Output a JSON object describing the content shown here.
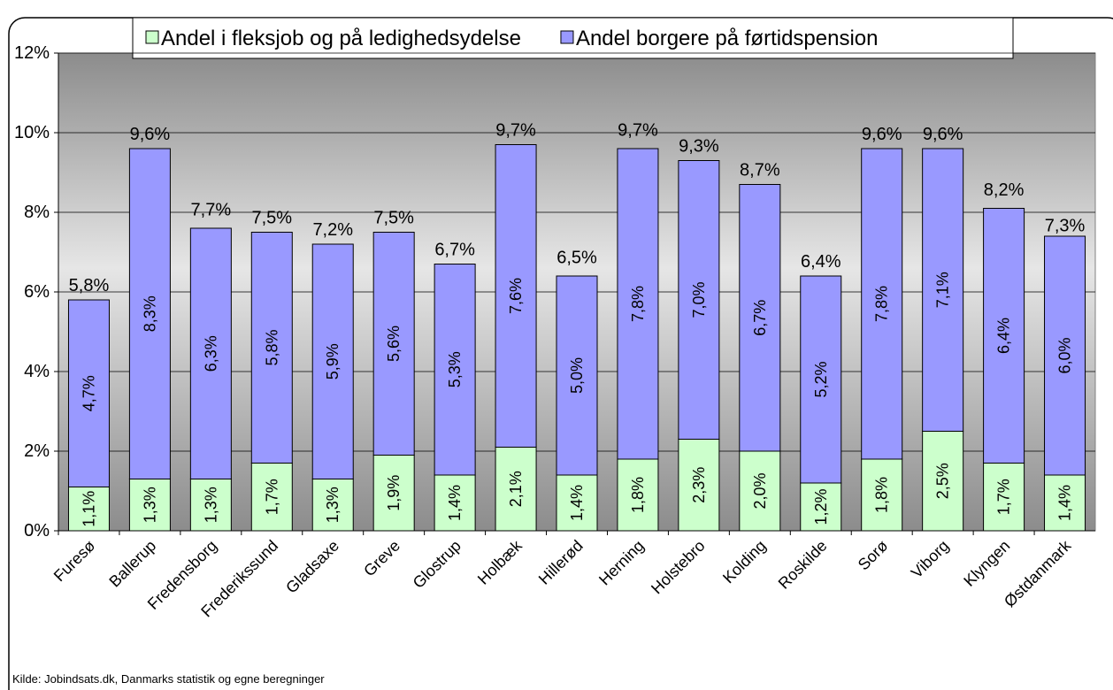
{
  "chart_data": {
    "type": "stacked_bar",
    "categories": [
      "Furesø",
      "Ballerup",
      "Fredensborg",
      "Frederikssund",
      "Gladsaxe",
      "Greve",
      "Glostrup",
      "Holbæk",
      "Hillerød",
      "Herning",
      "Holstebro",
      "Kolding",
      "Roskilde",
      "Sorø",
      "Viborg",
      "Klyngen",
      "Østdanmark"
    ],
    "series": [
      {
        "name": "Andel i fleksjob og på ledighedsydelse",
        "color": "#ccffcc",
        "values": [
          1.1,
          1.3,
          1.3,
          1.7,
          1.3,
          1.9,
          1.4,
          2.1,
          1.4,
          1.8,
          2.3,
          2.0,
          1.2,
          1.8,
          2.5,
          1.7,
          1.4
        ],
        "value_labels": [
          "1,1%",
          "1,3%",
          "1,3%",
          "1,7%",
          "1,3%",
          "1,9%",
          "1,4%",
          "2,1%",
          "1,4%",
          "1,8%",
          "2,3%",
          "2,0%",
          "1,2%",
          "1,8%",
          "2,5%",
          "1,7%",
          "1,4%"
        ]
      },
      {
        "name": "Andel borgere på førtidspension",
        "color": "#9999ff",
        "values": [
          4.7,
          8.3,
          6.3,
          5.8,
          5.9,
          5.6,
          5.3,
          7.6,
          5.0,
          7.8,
          7.0,
          6.7,
          5.2,
          7.8,
          7.1,
          6.4,
          6.0
        ],
        "value_labels": [
          "4,7%",
          "8,3%",
          "6,3%",
          "5,8%",
          "5,9%",
          "5,6%",
          "5,3%",
          "7,6%",
          "5,0%",
          "7,8%",
          "7,0%",
          "6,7%",
          "5,2%",
          "7,8%",
          "7,1%",
          "6,4%",
          "6,0%"
        ]
      }
    ],
    "totals": [
      5.8,
      9.6,
      7.7,
      7.5,
      7.2,
      7.5,
      6.7,
      9.7,
      6.5,
      9.7,
      9.3,
      8.7,
      6.4,
      9.6,
      9.6,
      8.2,
      7.3
    ],
    "total_labels": [
      "5,8%",
      "9,6%",
      "7,7%",
      "7,5%",
      "7,2%",
      "7,5%",
      "6,7%",
      "9,7%",
      "6,5%",
      "9,7%",
      "9,3%",
      "8,7%",
      "6,4%",
      "9,6%",
      "9,6%",
      "8,2%",
      "7,3%"
    ],
    "ylim": [
      0,
      12
    ],
    "yticks": [
      {
        "value": 0,
        "label": "0%"
      },
      {
        "value": 2,
        "label": "2%"
      },
      {
        "value": 4,
        "label": "4%"
      },
      {
        "value": 6,
        "label": "6%"
      },
      {
        "value": 8,
        "label": "8%"
      },
      {
        "value": 10,
        "label": "10%"
      },
      {
        "value": 12,
        "label": "12%"
      }
    ],
    "grid": true,
    "legend": "top",
    "source": "Kilde: Jobindsats.dk, Danmarks statistik og egne beregninger"
  }
}
